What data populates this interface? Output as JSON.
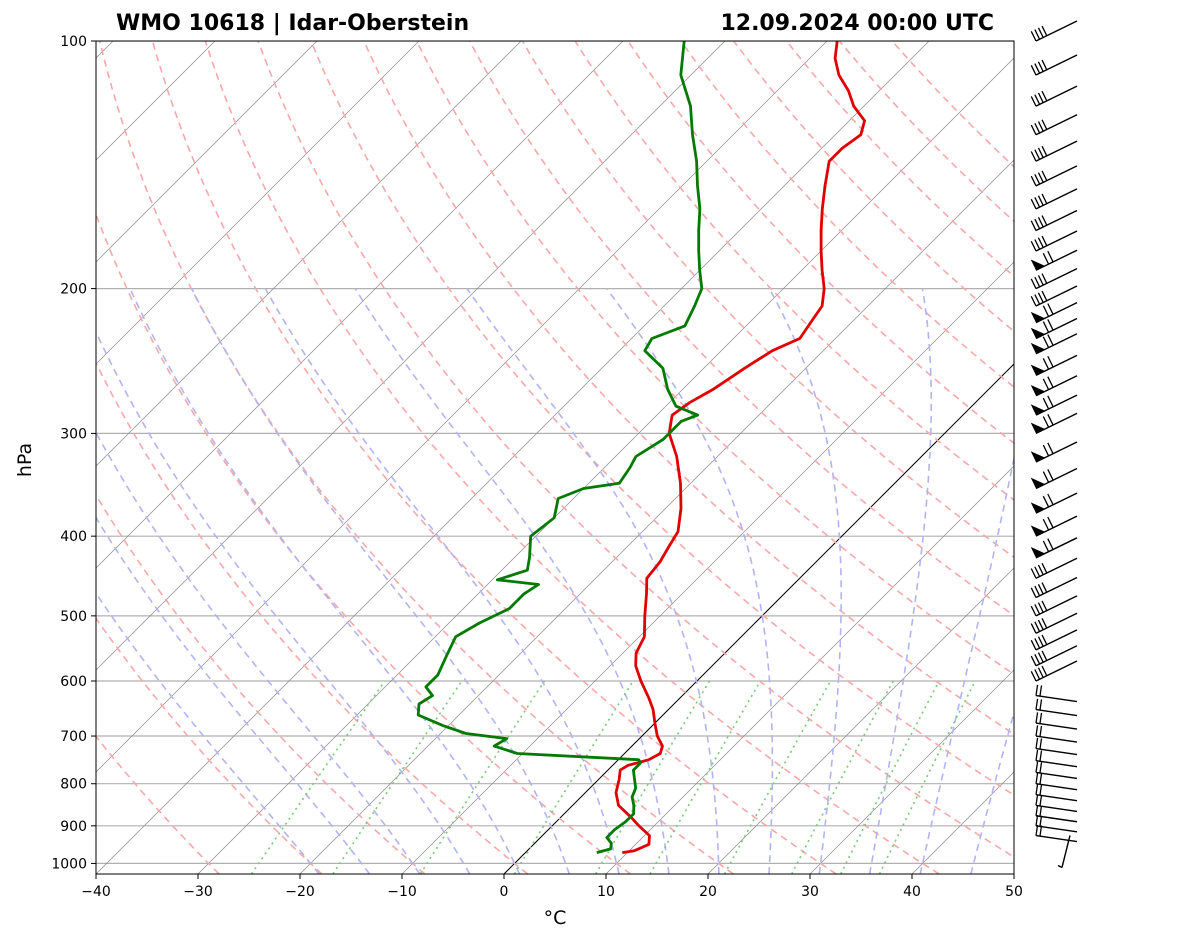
{
  "chart_data": {
    "type": "line",
    "title_left": "WMO 10618 | Idar-Oberstein",
    "title_right": "12.09.2024 00:00 UTC",
    "xlabel": "°C",
    "ylabel": "hPa",
    "xlim": [
      -40,
      50
    ],
    "ylim_pressure": [
      1030,
      100
    ],
    "log_pressure_axis": true,
    "skewed_temperature_axis": true,
    "x_ticks": [
      -40,
      -30,
      -20,
      -10,
      0,
      10,
      20,
      30,
      40,
      50
    ],
    "x_tick_labels": [
      "−40",
      "−30",
      "−20",
      "−10",
      "0",
      "10",
      "20",
      "30",
      "40",
      "50"
    ],
    "y_ticks": [
      1000,
      900,
      800,
      700,
      600,
      500,
      400,
      300,
      200,
      100
    ],
    "y_tick_labels": [
      "1000",
      "900",
      "800",
      "700",
      "600",
      "500",
      "400",
      "300",
      "200",
      "100"
    ],
    "grid": true,
    "colors": {
      "temperature": "#e00000",
      "dewpoint": "#007a00",
      "dry_adiabats": "#f7a8a8",
      "moist_adiabats": "#b3b3f2",
      "mixing_ratio": "#79c979",
      "isotherms": "#8a8a8a",
      "highlight_isotherm": "#000000"
    },
    "background_lines": {
      "isotherms_celsius": [
        -120,
        -110,
        -100,
        -90,
        -80,
        -70,
        -60,
        -50,
        -40,
        -30,
        -20,
        -10,
        0,
        10,
        20,
        30,
        40,
        50
      ],
      "highlight_isotherm_celsius": 0,
      "dry_adiabats_celsius_at_1000hPa": [
        -30,
        -20,
        -10,
        0,
        10,
        20,
        30,
        40,
        50,
        60,
        70,
        80,
        90,
        100,
        110,
        120,
        130,
        140,
        150,
        160,
        170
      ],
      "moist_adiabats_celsius_at_1000hPa": [
        -20,
        -15,
        -10,
        -5,
        0,
        5,
        10,
        15,
        20,
        25,
        30,
        35,
        40,
        45
      ],
      "mixing_ratio_lines_top_hPa": 600
    },
    "series": [
      {
        "name": "temperature",
        "points": [
          {
            "p": 970,
            "t": 9.5
          },
          {
            "p": 965,
            "t": 10.5
          },
          {
            "p": 948,
            "t": 11.3
          },
          {
            "p": 925,
            "t": 10.5
          },
          {
            "p": 900,
            "t": 8.5
          },
          {
            "p": 880,
            "t": 7.0
          },
          {
            "p": 850,
            "t": 4.5
          },
          {
            "p": 820,
            "t": 3.0
          },
          {
            "p": 790,
            "t": 2.0
          },
          {
            "p": 770,
            "t": 1.2
          },
          {
            "p": 760,
            "t": 1.5
          },
          {
            "p": 748,
            "t": 3.0
          },
          {
            "p": 735,
            "t": 3.5
          },
          {
            "p": 720,
            "t": 3.0
          },
          {
            "p": 700,
            "t": 1.5
          },
          {
            "p": 675,
            "t": 0.0
          },
          {
            "p": 650,
            "t": -1.5
          },
          {
            "p": 630,
            "t": -3.0
          },
          {
            "p": 600,
            "t": -5.5
          },
          {
            "p": 575,
            "t": -7.5
          },
          {
            "p": 555,
            "t": -8.7
          },
          {
            "p": 530,
            "t": -9.5
          },
          {
            "p": 500,
            "t": -11.5
          },
          {
            "p": 470,
            "t": -13.5
          },
          {
            "p": 450,
            "t": -15.0
          },
          {
            "p": 430,
            "t": -15.3
          },
          {
            "p": 410,
            "t": -16.0
          },
          {
            "p": 395,
            "t": -16.5
          },
          {
            "p": 370,
            "t": -18.5
          },
          {
            "p": 345,
            "t": -21.0
          },
          {
            "p": 320,
            "t": -24.0
          },
          {
            "p": 300,
            "t": -27.0
          },
          {
            "p": 290,
            "t": -28.0
          },
          {
            "p": 285,
            "t": -28.5
          },
          {
            "p": 275,
            "t": -28.0
          },
          {
            "p": 265,
            "t": -27.0
          },
          {
            "p": 250,
            "t": -26.0
          },
          {
            "p": 238,
            "t": -25.0
          },
          {
            "p": 230,
            "t": -23.5
          },
          {
            "p": 220,
            "t": -24.0
          },
          {
            "p": 210,
            "t": -24.5
          },
          {
            "p": 200,
            "t": -26.0
          },
          {
            "p": 190,
            "t": -28.0
          },
          {
            "p": 180,
            "t": -30.0
          },
          {
            "p": 170,
            "t": -32.0
          },
          {
            "p": 160,
            "t": -34.0
          },
          {
            "p": 150,
            "t": -36.0
          },
          {
            "p": 140,
            "t": -38.0
          },
          {
            "p": 135,
            "t": -38.0
          },
          {
            "p": 130,
            "t": -37.5
          },
          {
            "p": 125,
            "t": -38.5
          },
          {
            "p": 120,
            "t": -41.0
          },
          {
            "p": 115,
            "t": -43.0
          },
          {
            "p": 110,
            "t": -45.5
          },
          {
            "p": 105,
            "t": -47.5
          },
          {
            "p": 100,
            "t": -49.0
          }
        ]
      },
      {
        "name": "dewpoint",
        "points": [
          {
            "p": 970,
            "t": 7.0
          },
          {
            "p": 960,
            "t": 8.0
          },
          {
            "p": 945,
            "t": 7.5
          },
          {
            "p": 930,
            "t": 6.5
          },
          {
            "p": 910,
            "t": 6.5
          },
          {
            "p": 890,
            "t": 6.8
          },
          {
            "p": 870,
            "t": 6.8
          },
          {
            "p": 850,
            "t": 6.0
          },
          {
            "p": 830,
            "t": 5.0
          },
          {
            "p": 810,
            "t": 4.5
          },
          {
            "p": 790,
            "t": 3.5
          },
          {
            "p": 770,
            "t": 2.5
          },
          {
            "p": 755,
            "t": 2.5
          },
          {
            "p": 748,
            "t": 2.0
          },
          {
            "p": 735,
            "t": -10.5
          },
          {
            "p": 720,
            "t": -13.5
          },
          {
            "p": 705,
            "t": -13.0
          },
          {
            "p": 695,
            "t": -17.5
          },
          {
            "p": 680,
            "t": -20.5
          },
          {
            "p": 660,
            "t": -24.0
          },
          {
            "p": 640,
            "t": -25.0
          },
          {
            "p": 625,
            "t": -24.5
          },
          {
            "p": 610,
            "t": -26.0
          },
          {
            "p": 590,
            "t": -26.0
          },
          {
            "p": 560,
            "t": -27.0
          },
          {
            "p": 530,
            "t": -28.0
          },
          {
            "p": 510,
            "t": -27.0
          },
          {
            "p": 490,
            "t": -25.5
          },
          {
            "p": 470,
            "t": -25.5
          },
          {
            "p": 458,
            "t": -25.0
          },
          {
            "p": 452,
            "t": -29.5
          },
          {
            "p": 440,
            "t": -27.5
          },
          {
            "p": 425,
            "t": -28.5
          },
          {
            "p": 400,
            "t": -30.5
          },
          {
            "p": 380,
            "t": -30.0
          },
          {
            "p": 360,
            "t": -31.5
          },
          {
            "p": 350,
            "t": -30.0
          },
          {
            "p": 345,
            "t": -27.0
          },
          {
            "p": 330,
            "t": -27.5
          },
          {
            "p": 320,
            "t": -28.0
          },
          {
            "p": 305,
            "t": -27.0
          },
          {
            "p": 290,
            "t": -27.0
          },
          {
            "p": 285,
            "t": -26.0
          },
          {
            "p": 278,
            "t": -29.0
          },
          {
            "p": 265,
            "t": -31.5
          },
          {
            "p": 250,
            "t": -34.0
          },
          {
            "p": 238,
            "t": -37.5
          },
          {
            "p": 230,
            "t": -38.0
          },
          {
            "p": 222,
            "t": -36.0
          },
          {
            "p": 210,
            "t": -37.0
          },
          {
            "p": 200,
            "t": -38.0
          },
          {
            "p": 190,
            "t": -40.0
          },
          {
            "p": 180,
            "t": -42.0
          },
          {
            "p": 170,
            "t": -44.0
          },
          {
            "p": 160,
            "t": -46.0
          },
          {
            "p": 150,
            "t": -48.5
          },
          {
            "p": 140,
            "t": -51.0
          },
          {
            "p": 130,
            "t": -54.0
          },
          {
            "p": 120,
            "t": -57.0
          },
          {
            "p": 110,
            "t": -61.0
          },
          {
            "p": 100,
            "t": -64.0
          }
        ]
      }
    ],
    "wind_barbs": [
      {
        "p": 1000,
        "type": "short"
      },
      {
        "p": 925,
        "type": "low"
      },
      {
        "p": 900,
        "type": "low"
      },
      {
        "p": 875,
        "type": "low"
      },
      {
        "p": 850,
        "type": "low"
      },
      {
        "p": 825,
        "type": "low"
      },
      {
        "p": 800,
        "type": "low"
      },
      {
        "p": 775,
        "type": "low"
      },
      {
        "p": 750,
        "type": "low"
      },
      {
        "p": 725,
        "type": "low"
      },
      {
        "p": 700,
        "type": "low"
      },
      {
        "p": 675,
        "type": "low"
      },
      {
        "p": 650,
        "type": "low"
      },
      {
        "p": 625,
        "type": "low"
      },
      {
        "p": 600,
        "type": "mid"
      },
      {
        "p": 575,
        "type": "mid"
      },
      {
        "p": 550,
        "type": "mid"
      },
      {
        "p": 525,
        "type": "mid"
      },
      {
        "p": 500,
        "type": "mid"
      },
      {
        "p": 475,
        "type": "mid"
      },
      {
        "p": 450,
        "type": "mid"
      },
      {
        "p": 425,
        "type": "pennant"
      },
      {
        "p": 400,
        "type": "pennant"
      },
      {
        "p": 375,
        "type": "pennant"
      },
      {
        "p": 350,
        "type": "pennant"
      },
      {
        "p": 325,
        "type": "pennant"
      },
      {
        "p": 300,
        "type": "pennant"
      },
      {
        "p": 285,
        "type": "pennant"
      },
      {
        "p": 270,
        "type": "pennant"
      },
      {
        "p": 255,
        "type": "pennant"
      },
      {
        "p": 240,
        "type": "pennant"
      },
      {
        "p": 230,
        "type": "pennant"
      },
      {
        "p": 220,
        "type": "pennant"
      },
      {
        "p": 210,
        "type": "mid"
      },
      {
        "p": 200,
        "type": "mid"
      },
      {
        "p": 190,
        "type": "pennant"
      },
      {
        "p": 180,
        "type": "mid"
      },
      {
        "p": 170,
        "type": "mid"
      },
      {
        "p": 160,
        "type": "mid"
      },
      {
        "p": 150,
        "type": "mid"
      },
      {
        "p": 140,
        "type": "mid"
      },
      {
        "p": 130,
        "type": "mid"
      },
      {
        "p": 120,
        "type": "mid"
      },
      {
        "p": 110,
        "type": "mid"
      },
      {
        "p": 100,
        "type": "mid"
      }
    ]
  }
}
